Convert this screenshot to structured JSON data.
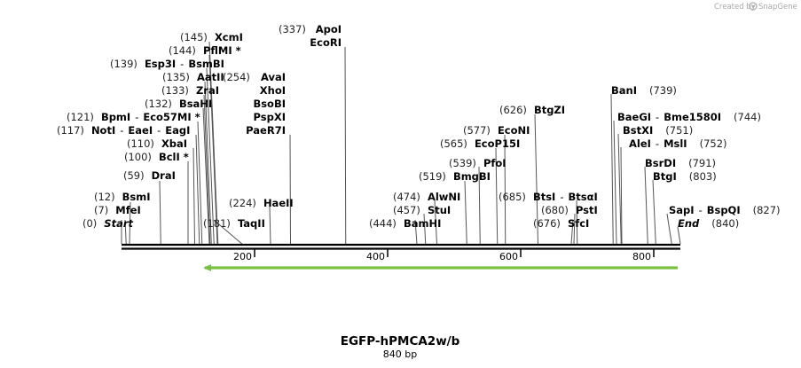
{
  "credit": "Created by",
  "brand": "SnapGene",
  "title": "EGFP-hPMCA2w/b",
  "subtitle": "840 bp",
  "total_bp": 840,
  "axis_ticks": [
    "200",
    "400",
    "600",
    "800"
  ],
  "feature_color": "#7ac142",
  "sites": [
    {
      "pos": "(0)",
      "parts": [
        "Start"
      ],
      "italic": true,
      "bp": 0
    },
    {
      "pos": "(7)",
      "parts": [
        "MfeI"
      ],
      "bp": 7
    },
    {
      "pos": "(12)",
      "parts": [
        "BsmI"
      ],
      "bp": 12
    },
    {
      "pos": "(59)",
      "parts": [
        "DraI"
      ],
      "bp": 59
    },
    {
      "pos": "(100)",
      "parts": [
        "BclI *"
      ],
      "bp": 100
    },
    {
      "pos": "(110)",
      "parts": [
        "XbaI"
      ],
      "bp": 110
    },
    {
      "pos": "(117)",
      "parts": [
        "NotI",
        "EaeI",
        "EagI"
      ],
      "bp": 117
    },
    {
      "pos": "(121)",
      "parts": [
        "BpmI",
        "Eco57MI *"
      ],
      "bp": 121
    },
    {
      "pos": "(132)",
      "parts": [
        "BsaHI"
      ],
      "bp": 132
    },
    {
      "pos": "(133)",
      "parts": [
        "ZraI"
      ],
      "bp": 133
    },
    {
      "pos": "(135)",
      "parts": [
        "AatII"
      ],
      "bp": 135
    },
    {
      "pos": "(139)",
      "parts": [
        "Esp3I",
        "BsmBI"
      ],
      "bp": 139
    },
    {
      "pos": "(144)",
      "parts": [
        "PflMI *"
      ],
      "bp": 144
    },
    {
      "pos": "(145)",
      "parts": [
        "XcmI"
      ],
      "bp": 145
    },
    {
      "pos": "(181)",
      "parts": [
        "TaqII"
      ],
      "bp": 181
    },
    {
      "pos": "(224)",
      "parts": [
        "HaeII"
      ],
      "bp": 224
    },
    {
      "pos": "(254)",
      "parts": [
        "AvaI",
        "XhoI",
        "BsoBI",
        "PspXI",
        "PaeR7I"
      ],
      "stack": true,
      "bp": 254
    },
    {
      "pos": "(337)",
      "parts": [
        "ApoI",
        "EcoRI"
      ],
      "stack": true,
      "bp": 337
    },
    {
      "pos": "(444)",
      "parts": [
        "BamHI"
      ],
      "bp": 444
    },
    {
      "pos": "(457)",
      "parts": [
        "StuI"
      ],
      "bp": 457
    },
    {
      "pos": "(474)",
      "parts": [
        "AlwNI"
      ],
      "bp": 474
    },
    {
      "pos": "(519)",
      "parts": [
        "BmgBI"
      ],
      "bp": 519
    },
    {
      "pos": "(539)",
      "parts": [
        "PfoI"
      ],
      "bp": 539
    },
    {
      "pos": "(565)",
      "parts": [
        "EcoP15I"
      ],
      "bp": 565
    },
    {
      "pos": "(577)",
      "parts": [
        "EcoNI"
      ],
      "bp": 577
    },
    {
      "pos": "(626)",
      "parts": [
        "BtgZI"
      ],
      "bp": 626
    },
    {
      "pos": "(676)",
      "parts": [
        "SfcI"
      ],
      "bp": 676
    },
    {
      "pos": "(680)",
      "parts": [
        "PstI"
      ],
      "bp": 680
    },
    {
      "pos": "(685)",
      "parts": [
        "BtsI",
        "BtsαI"
      ],
      "bp": 685
    },
    {
      "pos": "(739)",
      "parts": [
        "BanI"
      ],
      "bp": 739
    },
    {
      "pos": "(744)",
      "parts": [
        "BaeGI",
        "Bme1580I"
      ],
      "bp": 744
    },
    {
      "pos": "(751)",
      "parts": [
        "BstXI"
      ],
      "bp": 751
    },
    {
      "pos": "(752)",
      "parts": [
        "AleI",
        "MslI"
      ],
      "bp": 752
    },
    {
      "pos": "(791)",
      "parts": [
        "BsrDI"
      ],
      "bp": 791
    },
    {
      "pos": "(803)",
      "parts": [
        "BtgI"
      ],
      "bp": 803
    },
    {
      "pos": "(827)",
      "parts": [
        "SapI",
        "BspQI"
      ],
      "bp": 827
    },
    {
      "pos": "(840)",
      "parts": [
        "End"
      ],
      "italic": true,
      "bp": 840
    }
  ]
}
